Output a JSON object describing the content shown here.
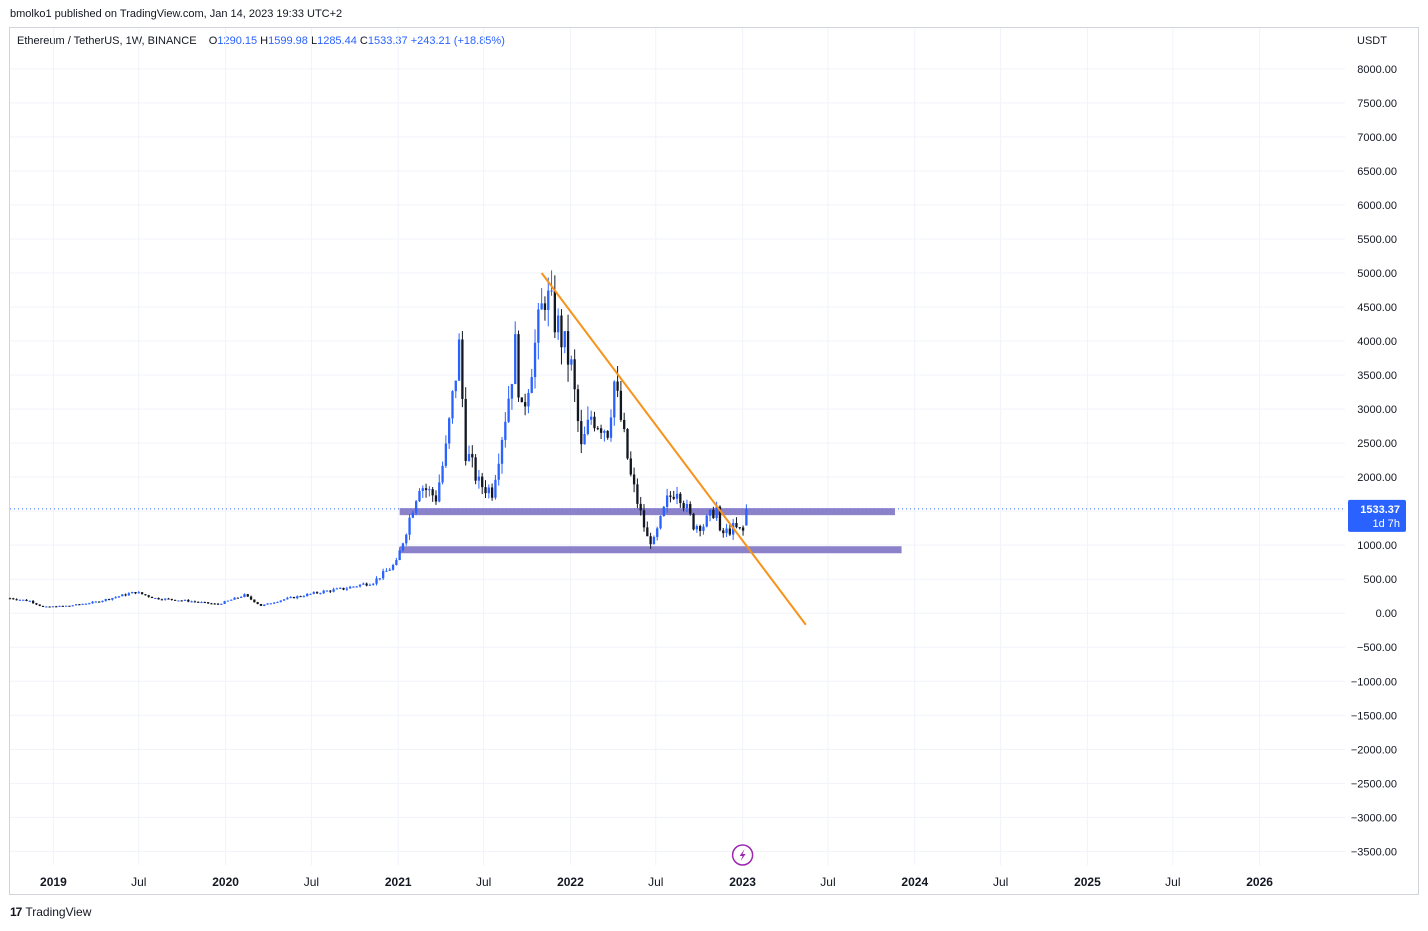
{
  "publisher_line": "bmolko1 published on TradingView.com, Jan 14, 2023 19:33 UTC+2",
  "legend": {
    "symbol": "Ethereum / TetherUS, 1W, BINANCE",
    "o_label": "O",
    "o_value": "1290.15",
    "h_label": "H",
    "h_value": "1599.98",
    "l_label": "L",
    "l_value": "1285.44",
    "c_label": "C",
    "c_value": "1533.37",
    "change": "+243.21 (+18.85%)"
  },
  "footer": {
    "logo": "17",
    "brand": "TradingView"
  },
  "colors": {
    "up": "#2962ff",
    "down": "#131722",
    "trendline": "#f7931a",
    "zone": "#7e74c4",
    "price_badge": "#2962ff",
    "grid": "#f0f3fa"
  },
  "event_icon": "lightning-icon",
  "chart_data": {
    "type": "candlestick",
    "title": "Ethereum / TetherUS, 1W, BINANCE",
    "currency_label": "USDT",
    "ylim": [
      -3700,
      8600
    ],
    "xlim": [
      "2018-10-01",
      "2026-07-01"
    ],
    "y_ticks": [
      "8000.00",
      "7500.00",
      "7000.00",
      "6500.00",
      "6000.00",
      "5500.00",
      "5000.00",
      "4500.00",
      "4000.00",
      "3500.00",
      "3000.00",
      "2500.00",
      "2000.00",
      "1500.00",
      "1000.00",
      "500.00",
      "0.00",
      "−500.00",
      "−1000.00",
      "−1500.00",
      "−2000.00",
      "−2500.00",
      "−3000.00",
      "−3500.00"
    ],
    "x_ticks": [
      {
        "label": "2019",
        "date": "2019-01-01",
        "bold": true
      },
      {
        "label": "Jul",
        "date": "2019-07-01",
        "bold": false
      },
      {
        "label": "2020",
        "date": "2020-01-01",
        "bold": true
      },
      {
        "label": "Jul",
        "date": "2020-07-01",
        "bold": false
      },
      {
        "label": "2021",
        "date": "2021-01-01",
        "bold": true
      },
      {
        "label": "Jul",
        "date": "2021-07-01",
        "bold": false
      },
      {
        "label": "2022",
        "date": "2022-01-01",
        "bold": true
      },
      {
        "label": "Jul",
        "date": "2022-07-01",
        "bold": false
      },
      {
        "label": "2023",
        "date": "2023-01-01",
        "bold": true
      },
      {
        "label": "Jul",
        "date": "2023-07-01",
        "bold": false
      },
      {
        "label": "2024",
        "date": "2024-01-01",
        "bold": true
      },
      {
        "label": "Jul",
        "date": "2024-07-01",
        "bold": false
      },
      {
        "label": "2025",
        "date": "2025-01-01",
        "bold": true
      },
      {
        "label": "Jul",
        "date": "2025-07-01",
        "bold": false
      },
      {
        "label": "2026",
        "date": "2026-01-01",
        "bold": true
      }
    ],
    "price_path": [
      [
        "2018-10-01",
        220
      ],
      [
        "2018-11-12",
        180
      ],
      [
        "2018-12-10",
        90
      ],
      [
        "2019-02-04",
        110
      ],
      [
        "2019-04-01",
        165
      ],
      [
        "2019-05-20",
        250
      ],
      [
        "2019-06-24",
        310
      ],
      [
        "2019-08-05",
        220
      ],
      [
        "2019-10-07",
        185
      ],
      [
        "2019-12-16",
        130
      ],
      [
        "2020-02-10",
        265
      ],
      [
        "2020-03-16",
        110
      ],
      [
        "2020-05-04",
        205
      ],
      [
        "2020-07-27",
        320
      ],
      [
        "2020-09-07",
        360
      ],
      [
        "2020-11-09",
        460
      ],
      [
        "2020-12-28",
        735
      ],
      [
        "2021-01-18",
        1230
      ],
      [
        "2021-02-15",
        1900
      ],
      [
        "2021-03-22",
        1700
      ],
      [
        "2021-04-12",
        2400
      ],
      [
        "2021-05-10",
        3900
      ],
      [
        "2021-05-24",
        2400
      ],
      [
        "2021-06-21",
        1900
      ],
      [
        "2021-07-19",
        1800
      ],
      [
        "2021-08-23",
        3200
      ],
      [
        "2021-09-06",
        3900
      ],
      [
        "2021-09-20",
        2900
      ],
      [
        "2021-10-25",
        4200
      ],
      [
        "2021-11-08",
        4700
      ],
      [
        "2021-12-06",
        4200
      ],
      [
        "2022-01-03",
        3600
      ],
      [
        "2022-01-24",
        2400
      ],
      [
        "2022-02-14",
        2900
      ],
      [
        "2022-03-21",
        2700
      ],
      [
        "2022-04-04",
        3400
      ],
      [
        "2022-05-09",
        2000
      ],
      [
        "2022-06-13",
        1100
      ],
      [
        "2022-06-27",
        1050
      ],
      [
        "2022-07-25",
        1650
      ],
      [
        "2022-08-15",
        1850
      ],
      [
        "2022-09-19",
        1300
      ],
      [
        "2022-10-10",
        1300
      ],
      [
        "2022-11-07",
        1550
      ],
      [
        "2022-11-14",
        1150
      ],
      [
        "2022-12-12",
        1250
      ],
      [
        "2023-01-02",
        1200
      ],
      [
        "2023-01-09",
        1533.37
      ]
    ],
    "trendline": {
      "start": [
        "2021-11-01",
        5000
      ],
      "end": [
        "2023-05-15",
        -170
      ]
    },
    "zones": [
      {
        "name": "resistance zone",
        "price": 1500,
        "from": "2021-01-04",
        "to": "2023-11-20"
      },
      {
        "name": "support zone",
        "price": 940,
        "from": "2021-01-04",
        "to": "2023-12-04"
      }
    ],
    "last_price": {
      "value": 1533.37,
      "label": "1533.37",
      "countdown": "1d 7h"
    }
  }
}
